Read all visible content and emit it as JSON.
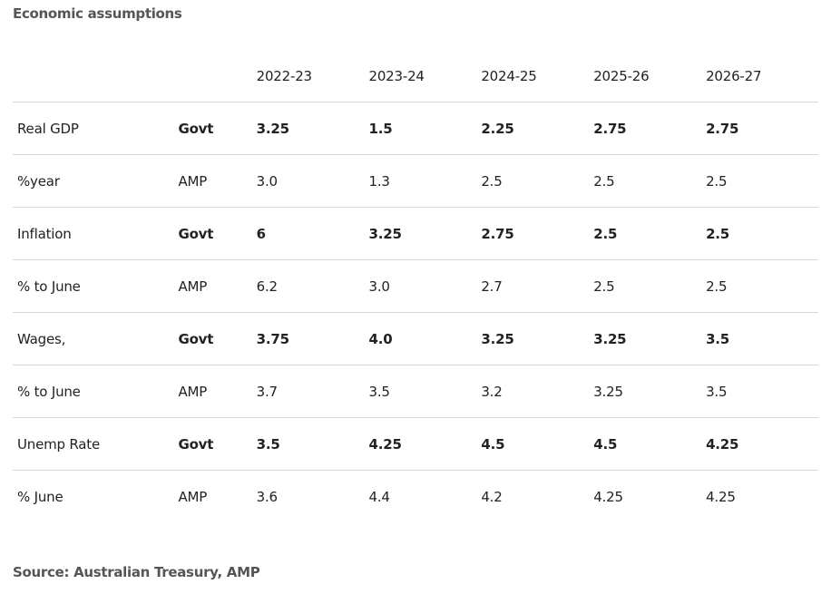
{
  "title": "Economic assumptions",
  "columns": [
    "2022-23",
    "2023-24",
    "2024-25",
    "2025-26",
    "2026-27"
  ],
  "rows": [
    {
      "label": "Real GDP",
      "source": "Govt",
      "values": [
        "3.25",
        "1.5",
        "2.25",
        "2.75",
        "2.75"
      ]
    },
    {
      "label": "%year",
      "source": "AMP",
      "values": [
        "3.0",
        "1.3",
        "2.5",
        "2.5",
        "2.5"
      ]
    },
    {
      "label": "Inflation",
      "source": "Govt",
      "values": [
        "6",
        "3.25",
        "2.75",
        "2.5",
        "2.5"
      ]
    },
    {
      "label": "% to June",
      "source": "AMP",
      "values": [
        "6.2",
        "3.0",
        "2.7",
        "2.5",
        "2.5"
      ]
    },
    {
      "label": "Wages,",
      "source": "Govt",
      "values": [
        "3.75",
        "4.0",
        "3.25",
        "3.25",
        "3.5"
      ]
    },
    {
      "label": "% to June",
      "source": "AMP",
      "values": [
        "3.7",
        "3.5",
        "3.2",
        "3.25",
        "3.5"
      ]
    },
    {
      "label": "Unemp Rate",
      "source": "Govt",
      "values": [
        "3.5",
        "4.25",
        "4.5",
        "4.5",
        "4.25"
      ]
    },
    {
      "label": "% June",
      "source": "AMP",
      "values": [
        "3.6",
        "4.4",
        "4.2",
        "4.25",
        "4.25"
      ]
    }
  ],
  "footer": "Source: Australian Treasury, AMP"
}
